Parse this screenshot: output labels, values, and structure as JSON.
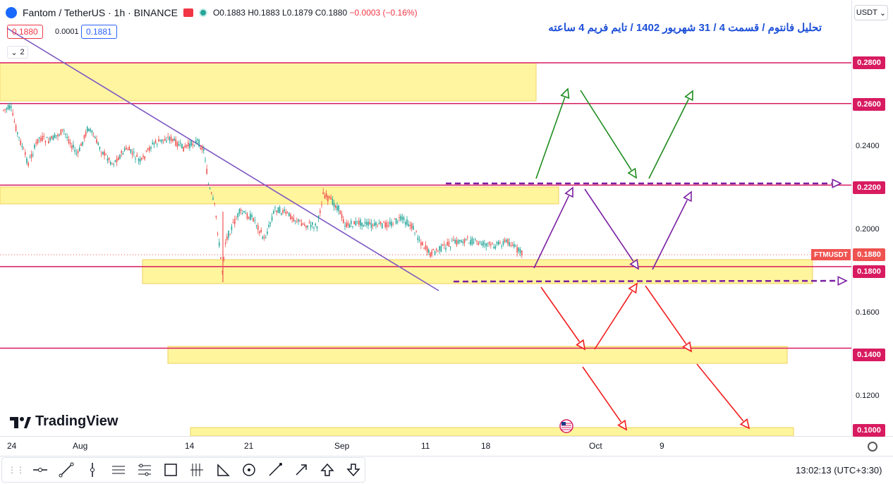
{
  "header": {
    "symbol_text": "Fantom / TetherUS · 1h · BINANCE",
    "ohlc": {
      "o": "O0.1883",
      "h": "H0.1883",
      "l": "L0.1879",
      "c": "C0.1880",
      "chg": "−0.0003 (−0.16%)"
    }
  },
  "trade": {
    "sell": "0.1880",
    "spread": "0.0001",
    "buy": "0.1881"
  },
  "indicators_collapse": "2",
  "currency": "USDT",
  "annotation_title": "تحلیل فانتوم / قسمت 4 / 31 شهریور 1402 / تایم فریم 4 ساعته",
  "price_axis": {
    "ticks": [
      "0.2400",
      "0.2000",
      "0.1600",
      "0.1200"
    ],
    "highlighted_levels": [
      "0.2800",
      "0.2600",
      "0.2200",
      "0.1800",
      "0.1400",
      "0.1000"
    ],
    "current_symbol": "FTMUSDT",
    "current_price": "0.1880"
  },
  "time_axis": [
    "24",
    "Aug",
    "14",
    "21",
    "Sep",
    "11",
    "18",
    "Oct",
    "9"
  ],
  "branding": "TradingView",
  "clock": "13:02:13 (UTC+3:30)",
  "colors": {
    "level_line": "#d81b60",
    "zone_fill": "#fff59d",
    "trend": "#7e57c2",
    "up": "#26a69a",
    "down": "#ef5350"
  },
  "toolbar_icons": [
    "horizontal-line-icon",
    "trend-line-icon",
    "vertical-line-icon",
    "parallel-channel-icon",
    "pitchfork-icon",
    "rectangle-icon",
    "fib-icon",
    "triangle-icon",
    "ellipse-icon",
    "brush-icon",
    "arrow-icon",
    "arrow-up-icon",
    "arrow-down-icon"
  ]
}
